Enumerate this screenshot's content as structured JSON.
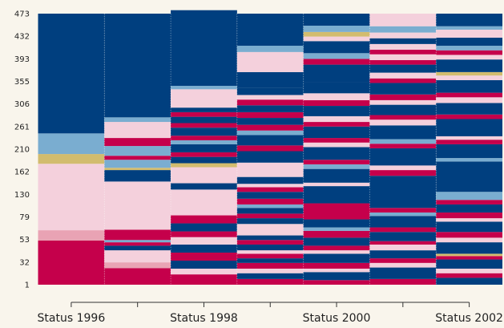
{
  "chart_data": {
    "type": "sequence_index",
    "categories": [
      "Status 1996",
      null,
      "Status 1998",
      null,
      "Status 2000",
      null,
      "Status 2002"
    ],
    "ytick_labels": [
      "1",
      "32",
      "53",
      "79",
      "130",
      "162",
      "210",
      "261",
      "306",
      "355",
      "393",
      "432",
      "473"
    ],
    "ylim": [
      0,
      473
    ],
    "palette": [
      "#003f7f",
      "#7aadd0",
      "#d2bc6e",
      "#f4d0dc",
      "#e9a3b4",
      "#c5004b"
    ],
    "columns": [
      [
        [
          5,
          77
        ],
        [
          4,
          18
        ],
        [
          3,
          116
        ],
        [
          2,
          17
        ],
        [
          1,
          36
        ],
        [
          0,
          209
        ]
      ],
      [
        [
          5,
          29
        ],
        [
          4,
          10
        ],
        [
          3,
          21
        ],
        [
          0,
          8
        ],
        [
          5,
          6
        ],
        [
          1,
          4
        ],
        [
          5,
          18
        ],
        [
          3,
          84
        ],
        [
          0,
          20
        ],
        [
          2,
          4
        ],
        [
          1,
          14
        ],
        [
          5,
          7
        ],
        [
          1,
          17
        ],
        [
          5,
          14
        ],
        [
          3,
          28
        ],
        [
          1,
          8
        ],
        [
          0,
          181
        ]
      ],
      [
        [
          5,
          18
        ],
        [
          3,
          10
        ],
        [
          0,
          14
        ],
        [
          5,
          14
        ],
        [
          0,
          14
        ],
        [
          3,
          13
        ],
        [
          5,
          10
        ],
        [
          0,
          14
        ],
        [
          5,
          14
        ],
        [
          3,
          45
        ],
        [
          0,
          11
        ],
        [
          3,
          28
        ],
        [
          2,
          7
        ],
        [
          0,
          11
        ],
        [
          5,
          8
        ],
        [
          0,
          14
        ],
        [
          1,
          7
        ],
        [
          5,
          8
        ],
        [
          0,
          14
        ],
        [
          5,
          8
        ],
        [
          0,
          11
        ],
        [
          5,
          8
        ],
        [
          0,
          8
        ],
        [
          3,
          32
        ],
        [
          1,
          6
        ],
        [
          0,
          132
        ]
      ],
      [
        [
          5,
          10
        ],
        [
          0,
          10
        ],
        [
          3,
          8
        ],
        [
          5,
          10
        ],
        [
          0,
          8
        ],
        [
          5,
          8
        ],
        [
          3,
          6
        ],
        [
          0,
          10
        ],
        [
          5,
          8
        ],
        [
          0,
          8
        ],
        [
          3,
          20
        ],
        [
          0,
          10
        ],
        [
          5,
          8
        ],
        [
          0,
          10
        ],
        [
          1,
          6
        ],
        [
          5,
          10
        ],
        [
          0,
          12
        ],
        [
          5,
          8
        ],
        [
          3,
          6
        ],
        [
          0,
          12
        ],
        [
          3,
          25
        ],
        [
          0,
          20
        ],
        [
          5,
          10
        ],
        [
          0,
          18
        ],
        [
          1,
          8
        ],
        [
          5,
          10
        ],
        [
          0,
          12
        ],
        [
          5,
          10
        ],
        [
          0,
          12
        ],
        [
          5,
          10
        ],
        [
          3,
          8
        ],
        [
          0,
          12
        ],
        [
          0,
          28
        ],
        [
          3,
          35
        ],
        [
          1,
          11
        ],
        [
          0,
          56
        ]
      ],
      [
        [
          5,
          8
        ],
        [
          0,
          14
        ],
        [
          3,
          6
        ],
        [
          5,
          10
        ],
        [
          0,
          16
        ],
        [
          3,
          6
        ],
        [
          5,
          8
        ],
        [
          0,
          14
        ],
        [
          5,
          12
        ],
        [
          1,
          6
        ],
        [
          0,
          14
        ],
        [
          5,
          28
        ],
        [
          0,
          30
        ],
        [
          3,
          6
        ],
        [
          0,
          24
        ],
        [
          1,
          8
        ],
        [
          5,
          8
        ],
        [
          0,
          22
        ],
        [
          3,
          8
        ],
        [
          5,
          8
        ],
        [
          0,
          20
        ],
        [
          5,
          8
        ],
        [
          3,
          10
        ],
        [
          0,
          18
        ],
        [
          5,
          10
        ],
        [
          3,
          12
        ],
        [
          0,
          20
        ],
        [
          0,
          30
        ],
        [
          5,
          10
        ],
        [
          1,
          10
        ],
        [
          0,
          21
        ],
        [
          3,
          8
        ],
        [
          2,
          8
        ],
        [
          1,
          11
        ],
        [
          0,
          21
        ]
      ],
      [
        [
          5,
          10
        ],
        [
          0,
          20
        ],
        [
          3,
          8
        ],
        [
          5,
          8
        ],
        [
          0,
          14
        ],
        [
          3,
          10
        ],
        [
          5,
          6
        ],
        [
          0,
          16
        ],
        [
          5,
          8
        ],
        [
          0,
          20
        ],
        [
          1,
          6
        ],
        [
          5,
          8
        ],
        [
          0,
          56
        ],
        [
          5,
          10
        ],
        [
          3,
          8
        ],
        [
          0,
          30
        ],
        [
          5,
          8
        ],
        [
          1,
          8
        ],
        [
          0,
          24
        ],
        [
          3,
          10
        ],
        [
          5,
          8
        ],
        [
          0,
          18
        ],
        [
          3,
          8
        ],
        [
          5,
          10
        ],
        [
          0,
          20
        ],
        [
          5,
          8
        ],
        [
          3,
          10
        ],
        [
          0,
          14
        ],
        [
          5,
          8
        ],
        [
          3,
          10
        ],
        [
          5,
          8
        ],
        [
          3,
          10
        ],
        [
          0,
          10
        ],
        [
          3,
          10
        ],
        [
          1,
          11
        ],
        [
          3,
          22
        ]
      ],
      [
        [
          0,
          12
        ],
        [
          5,
          8
        ],
        [
          3,
          8
        ],
        [
          0,
          16
        ],
        [
          5,
          6
        ],
        [
          2,
          4
        ],
        [
          0,
          20
        ],
        [
          3,
          8
        ],
        [
          5,
          10
        ],
        [
          0,
          18
        ],
        [
          3,
          6
        ],
        [
          5,
          10
        ],
        [
          0,
          14
        ],
        [
          5,
          8
        ],
        [
          1,
          14
        ],
        [
          0,
          53
        ],
        [
          1,
          6
        ],
        [
          0,
          24
        ],
        [
          5,
          8
        ],
        [
          3,
          6
        ],
        [
          0,
          30
        ],
        [
          5,
          8
        ],
        [
          0,
          20
        ],
        [
          3,
          10
        ],
        [
          5,
          8
        ],
        [
          0,
          22
        ],
        [
          3,
          8
        ],
        [
          2,
          6
        ],
        [
          0,
          22
        ],
        [
          3,
          8
        ],
        [
          5,
          8
        ],
        [
          1,
          8
        ],
        [
          0,
          14
        ],
        [
          3,
          14
        ],
        [
          1,
          6
        ],
        [
          0,
          22
        ]
      ]
    ]
  }
}
